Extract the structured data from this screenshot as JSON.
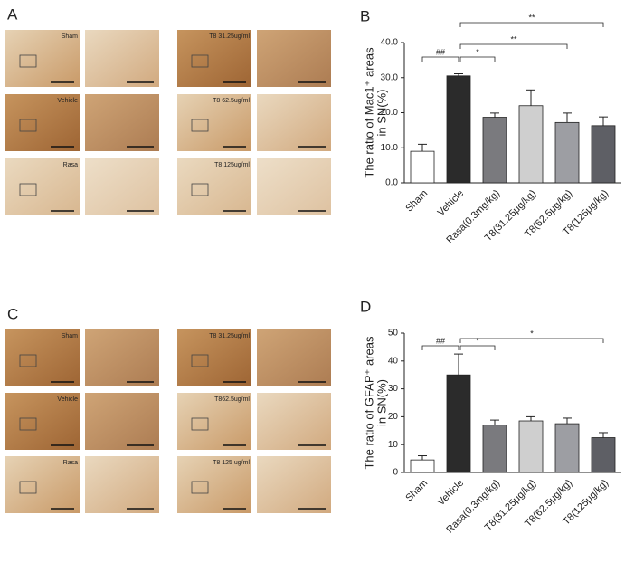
{
  "figure_panels": [
    {
      "letter": "A",
      "images": [
        "Sham",
        "Vehicle",
        "Rasa",
        "T8 31.25ug/ml",
        "T8 62.5ug/ml",
        "T8 125ug/ml"
      ]
    },
    {
      "letter": "C",
      "images": [
        "Sham",
        "Vehicle",
        "Rasa",
        "T8 31.25ug/ml",
        "T862.5ug/ml",
        "T8 125 ug/ml"
      ]
    }
  ],
  "chart_data": [
    {
      "type": "bar",
      "letter": "B",
      "ylabel": [
        "The ratio of Mac1⁺ areas",
        "in SN(%)"
      ],
      "categories": [
        "Sham",
        "Vehicle",
        "Rasa(0.3mg/kg)",
        "T8(31.25μg/kg)",
        "T8(62.5μg/kg)",
        "T8(125μg/kg)"
      ],
      "values": [
        9,
        30.5,
        18.7,
        22,
        17.2,
        16.3
      ],
      "errors": [
        2,
        0.6,
        1.2,
        4.5,
        2.7,
        2.5
      ],
      "colors": [
        "#ffffff",
        "#2b2b2b",
        "#7a7a7e",
        "#cfcfcf",
        "#9d9ea3",
        "#5e5f65"
      ],
      "ylim": [
        0,
        40
      ],
      "yticks": [
        {
          "value": 0,
          "label": "0.0"
        },
        {
          "value": 10,
          "label": "10.0"
        },
        {
          "value": 20,
          "label": "20.0"
        },
        {
          "value": 30,
          "label": "30.0"
        },
        {
          "value": 40,
          "label": "40.0"
        }
      ],
      "annotations": [
        {
          "text": "##",
          "from": 0,
          "to": 1
        },
        {
          "text": "*",
          "from": 1,
          "to": 2
        },
        {
          "text": "**",
          "from": 1,
          "to": 4
        },
        {
          "text": "**",
          "from": 1,
          "to": 5
        }
      ]
    },
    {
      "type": "bar",
      "letter": "D",
      "ylabel": [
        "The ratio of GFAP⁺ areas",
        "in SN(%)"
      ],
      "categories": [
        "Sham",
        "Vehicle",
        "Rasa(0.3mg/kg)",
        "T8(31.25μg/kg)",
        "T8(62.5μg/kg)",
        "T8(125μg/kg)"
      ],
      "values": [
        4.5,
        35,
        17,
        18.5,
        17.5,
        12.5
      ],
      "errors": [
        1.5,
        7.5,
        1.8,
        1.5,
        2,
        1.8
      ],
      "colors": [
        "#ffffff",
        "#2b2b2b",
        "#7a7a7e",
        "#cfcfcf",
        "#9d9ea3",
        "#5e5f65"
      ],
      "ylim": [
        0,
        50
      ],
      "yticks": [
        0,
        10,
        20,
        30,
        40,
        50
      ],
      "annotations": [
        {
          "text": "##",
          "from": 0,
          "to": 1
        },
        {
          "text": "*",
          "from": 1,
          "to": 2
        },
        {
          "text": "*",
          "from": 1,
          "to": 5
        }
      ]
    }
  ]
}
